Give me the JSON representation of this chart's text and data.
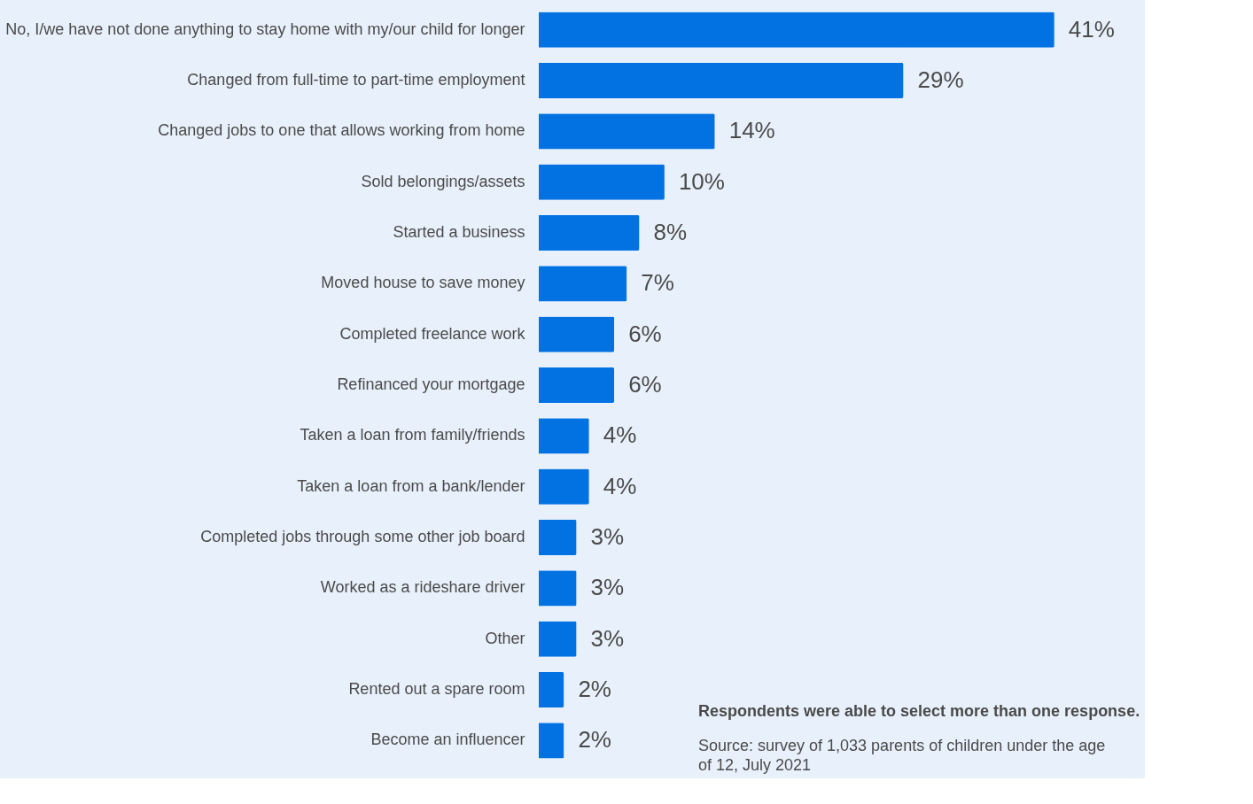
{
  "chart_data": {
    "type": "bar",
    "orientation": "horizontal",
    "color": "#0272e3",
    "categories": [
      "No, I/we have not done anything to stay home with my/our child for longer",
      "Changed from full-time to part-time employment",
      "Changed jobs to one that allows working from home",
      "Sold belongings/assets",
      "Started a business",
      "Moved house to save money",
      "Completed freelance work",
      "Refinanced your mortgage",
      "Taken a loan from family/friends",
      "Taken a loan from a bank/lender",
      "Completed jobs through some other job board",
      "Worked as a rideshare driver",
      "Other",
      "Rented out a spare room",
      "Become an influencer"
    ],
    "values": [
      41,
      29,
      14,
      10,
      8,
      7,
      6,
      6,
      4,
      4,
      3,
      3,
      3,
      2,
      2
    ],
    "value_labels": [
      "41%",
      "29%",
      "14%",
      "10%",
      "8%",
      "7%",
      "6%",
      "6%",
      "4%",
      "4%",
      "3%",
      "3%",
      "3%",
      "2%",
      "2%"
    ],
    "annotations": [
      "Respondents were able to select more than one response.",
      "Source: survey of 1,033 parents of children under the age of 12, July 2021"
    ],
    "grid": false
  }
}
